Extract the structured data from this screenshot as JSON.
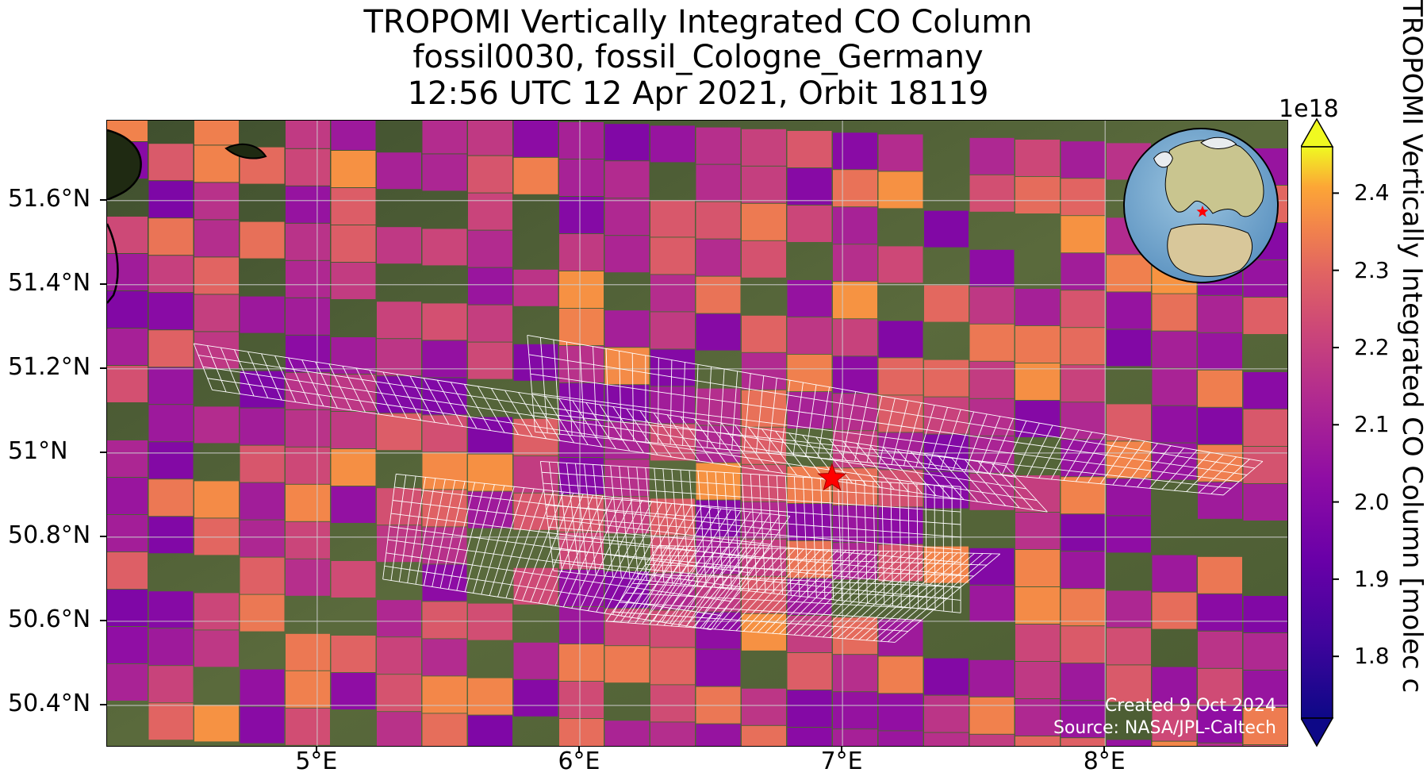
{
  "title": {
    "line1": "TROPOMI Vertically Integrated CO Column",
    "line2": "fossil0030, fossil_Cologne_Germany",
    "line3": "12:56 UTC 12 Apr 2021, Orbit 18119"
  },
  "map": {
    "lon_range": [
      4.2,
      8.7
    ],
    "lat_range": [
      50.3,
      51.79
    ],
    "x_ticks": [
      {
        "value": 5,
        "label": "5°E"
      },
      {
        "value": 6,
        "label": "6°E"
      },
      {
        "value": 7,
        "label": "7°E"
      },
      {
        "value": 8,
        "label": "8°E"
      }
    ],
    "y_ticks": [
      {
        "value": 51.6,
        "label": "51.6°N"
      },
      {
        "value": 51.4,
        "label": "51.4°N"
      },
      {
        "value": 51.2,
        "label": "51.2°N"
      },
      {
        "value": 51.0,
        "label": "51°N"
      },
      {
        "value": 50.8,
        "label": "50.8°N"
      },
      {
        "value": 50.6,
        "label": "50.6°N"
      },
      {
        "value": 50.4,
        "label": "50.4°N"
      }
    ],
    "gridlines": true,
    "site_marker": {
      "lon": 6.96,
      "lat": 50.94,
      "color": "#ff0000",
      "symbol": "star"
    },
    "target_grid_color": "#ffffff",
    "credit": {
      "created": "Created 9 Oct 2024",
      "source": "Source: NASA/JPL-Caltech"
    },
    "inset_globe": {
      "marker_color": "#ff0000"
    }
  },
  "colorbar": {
    "colormap": "plasma",
    "multiplier": "1e18",
    "range": [
      1.72,
      2.46
    ],
    "extend": "both",
    "ticks": [
      {
        "value": 2.4,
        "label": "2.4"
      },
      {
        "value": 2.3,
        "label": "2.3"
      },
      {
        "value": 2.2,
        "label": "2.2"
      },
      {
        "value": 2.1,
        "label": "2.1"
      },
      {
        "value": 2.0,
        "label": "2.0"
      },
      {
        "value": 1.9,
        "label": "1.9"
      },
      {
        "value": 1.8,
        "label": "1.8"
      }
    ],
    "label": "TROPOMI Vertically Integrated CO Column [molec c"
  }
}
